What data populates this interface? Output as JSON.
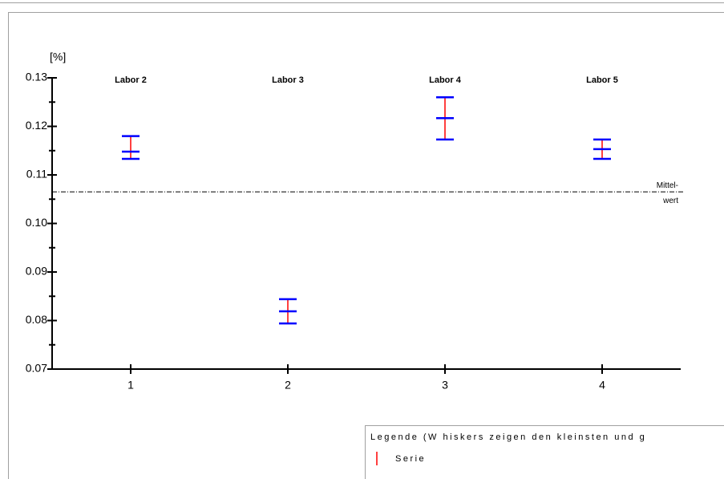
{
  "chart_data": {
    "type": "errorbar",
    "ylabel": "[%]",
    "x": [
      1,
      2,
      3,
      4
    ],
    "xlim": [
      0.5,
      4.5
    ],
    "xticks": [
      1,
      2,
      3,
      4
    ],
    "ylim": [
      0.07,
      0.13
    ],
    "yticks": [
      0.07,
      0.08,
      0.09,
      {
        "value": 0.1,
        "label": "0.10"
      },
      0.11,
      0.12,
      0.13
    ],
    "minor_yticks": [
      0.075,
      0.085,
      0.095,
      0.105,
      0.115,
      0.125
    ],
    "annotations": [
      "Labor 2",
      "Labor 3",
      "Labor 4",
      "Labor 5"
    ],
    "reference_line": {
      "value": 0.1065,
      "label_top": "Mittel-",
      "label_bottom": "wert"
    },
    "legend_title": "Legende (W hiskers zeigen den kleinsten und g",
    "series": [
      {
        "name": "Serie",
        "color": "#ff0000",
        "whisker_color": "#0000ff",
        "min": [
          0.1133,
          0.0794,
          0.1173,
          0.1133
        ],
        "max": [
          0.118,
          0.0844,
          0.126,
          0.1173
        ],
        "mean": [
          0.1148,
          0.0819,
          0.1217,
          0.1153
        ]
      }
    ]
  }
}
